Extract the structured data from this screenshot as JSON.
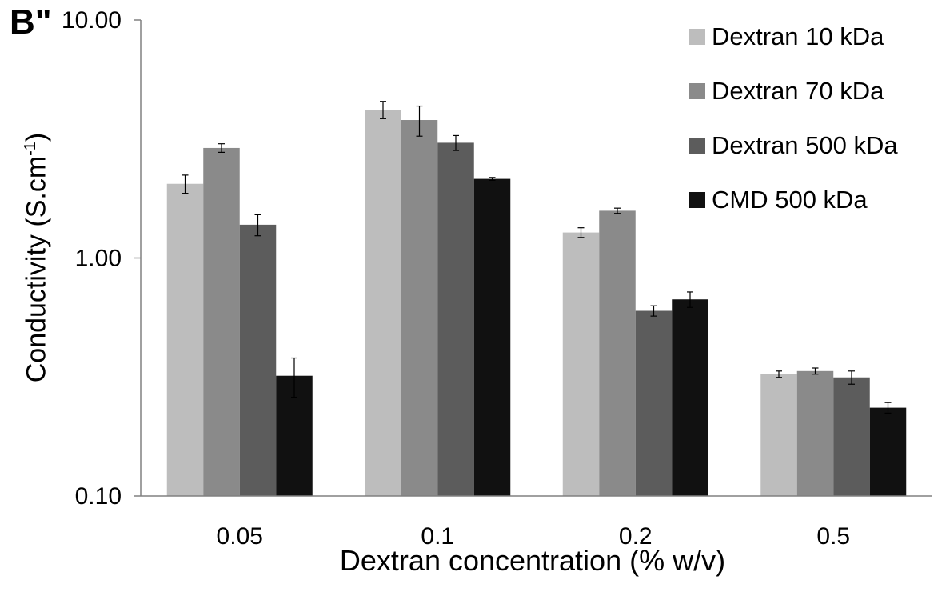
{
  "panel_label": "B\"",
  "colors": {
    "Dextran 10 kDa": "#bdbdbd",
    "Dextran 70 kDa": "#8a8a8a",
    "Dextran 500 kDa": "#5c5c5c",
    "CMD 500 kDa": "#111111",
    "axis": "#808080"
  },
  "chart_data": {
    "type": "bar",
    "title": "",
    "xlabel": "Dextran concentration (% w/v)",
    "ylabel_main": "Conductivity (S.cm",
    "ylabel_sup": "-1",
    "ylabel_tail": ")",
    "y_scale": "log",
    "ylim": [
      0.1,
      10
    ],
    "y_ticks": [
      "0.10",
      "1.00",
      "10.00"
    ],
    "y_tick_values": [
      0.1,
      1,
      10
    ],
    "legend_position": "top-right",
    "categories": [
      "0.05",
      "0.1",
      "0.2",
      "0.5"
    ],
    "series": [
      {
        "name": "Dextran 10 kDa",
        "values": [
          2.05,
          4.2,
          1.28,
          0.325
        ],
        "errors": [
          0.18,
          0.35,
          0.06,
          0.01
        ]
      },
      {
        "name": "Dextran 70 kDa",
        "values": [
          2.9,
          3.8,
          1.58,
          0.335
        ],
        "errors": [
          0.12,
          0.55,
          0.04,
          0.01
        ]
      },
      {
        "name": "Dextran 500 kDa",
        "values": [
          1.38,
          3.05,
          0.6,
          0.315
        ],
        "errors": [
          0.14,
          0.22,
          0.03,
          0.02
        ]
      },
      {
        "name": "CMD 500 kDa",
        "values": [
          0.32,
          2.15,
          0.67,
          0.235
        ],
        "errors": [
          0.06,
          0.03,
          0.05,
          0.012
        ]
      }
    ]
  }
}
